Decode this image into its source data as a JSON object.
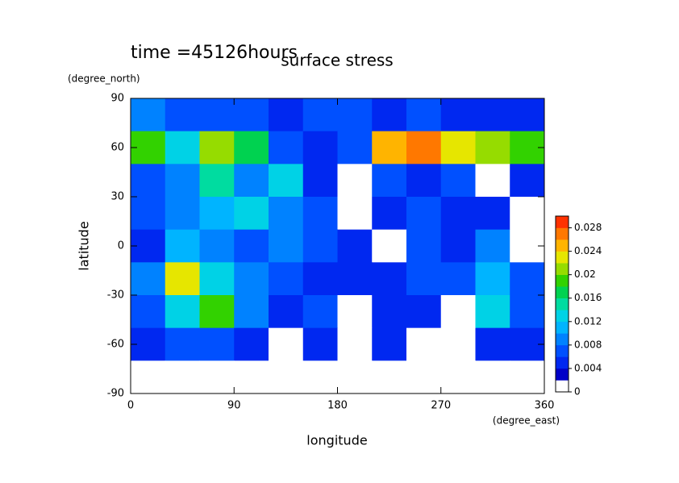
{
  "chart_data": {
    "type": "contourf",
    "title": "surface stress",
    "subtitle": "time =45126hours",
    "x_label": "longitude",
    "x_unit": "(degree_east)",
    "y_label": "latitude",
    "y_unit": "(degree_north)",
    "xlim": [
      0,
      360
    ],
    "xticks": [
      0,
      90,
      180,
      270,
      360
    ],
    "ylim": [
      -90,
      90
    ],
    "yticks": [
      -90,
      -60,
      -30,
      0,
      30,
      60,
      90
    ],
    "x": [
      15,
      45,
      75,
      105,
      135,
      165,
      195,
      225,
      255,
      285,
      315,
      345
    ],
    "y": [
      80,
      60,
      40,
      20,
      0,
      -20,
      -40,
      -60,
      -80
    ],
    "z": [
      [
        0.008,
        0.006,
        0.006,
        0.006,
        0.004,
        0.006,
        0.006,
        0.004,
        0.006,
        0.004,
        0.004,
        0.004
      ],
      [
        0.018,
        0.012,
        0.02,
        0.016,
        0.006,
        0.004,
        0.006,
        0.024,
        0.026,
        0.022,
        0.02,
        0.018
      ],
      [
        0.006,
        0.008,
        0.014,
        0.008,
        0.012,
        0.004,
        0.001,
        0.006,
        0.004,
        0.006,
        0.001,
        0.004
      ],
      [
        0.006,
        0.008,
        0.01,
        0.012,
        0.008,
        0.006,
        0.001,
        0.004,
        0.006,
        0.004,
        0.004,
        0.001
      ],
      [
        0.004,
        0.01,
        0.008,
        0.006,
        0.008,
        0.006,
        0.004,
        0.001,
        0.006,
        0.004,
        0.008,
        0.001
      ],
      [
        0.008,
        0.022,
        0.012,
        0.008,
        0.006,
        0.004,
        0.004,
        0.004,
        0.006,
        0.006,
        0.01,
        0.006
      ],
      [
        0.006,
        0.012,
        0.018,
        0.008,
        0.004,
        0.006,
        0.001,
        0.004,
        0.004,
        0.001,
        0.012,
        0.006
      ],
      [
        0.004,
        0.006,
        0.006,
        0.004,
        0.001,
        0.004,
        0.001,
        0.004,
        0.001,
        0.001,
        0.004,
        0.004
      ],
      [
        0,
        0,
        0,
        0,
        0,
        0,
        0,
        0,
        0,
        0,
        0,
        0
      ]
    ],
    "zlim": [
      0,
      0.03
    ],
    "zticks": [
      0,
      0.004,
      0.008,
      0.012,
      0.016,
      0.02,
      0.024,
      0.028
    ],
    "colors": [
      "#ffffff",
      "#0000c8",
      "#0028f0",
      "#0050ff",
      "#0082ff",
      "#00b4ff",
      "#00d2e6",
      "#00dca0",
      "#00d250",
      "#32d200",
      "#96dc00",
      "#e6e600",
      "#ffb400",
      "#ff7800",
      "#ff3200"
    ]
  }
}
